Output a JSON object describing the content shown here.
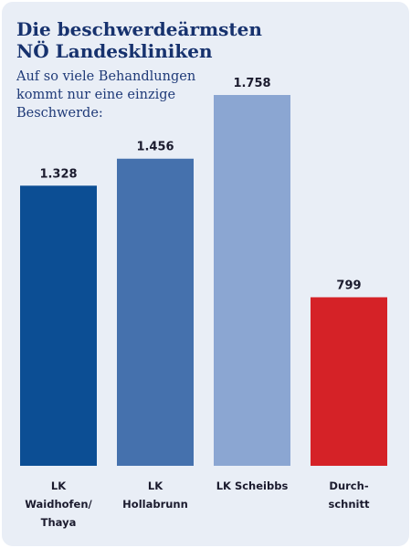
{
  "title_lines": [
    "Die beschwerdeärmsten",
    "NÖ Landeskliniken"
  ],
  "subtitle_lines": [
    "Auf so viele Behandlungen",
    "kommt nur eine einzige",
    "Beschwerde:"
  ],
  "chart_data": {
    "type": "bar",
    "categories": [
      [
        "LK",
        "Waidhofen/",
        "Thaya"
      ],
      [
        "LK",
        "Hollabrunn"
      ],
      [
        "LK Scheibbs"
      ],
      [
        "Durch-",
        "schnitt"
      ]
    ],
    "values": [
      1328,
      1456,
      1758,
      799
    ],
    "value_labels": [
      "1.328",
      "1.456",
      "1.758",
      "799"
    ],
    "colors": [
      "#0c4e94",
      "#4571ad",
      "#8ba6d2",
      "#d52227"
    ],
    "title": "Die beschwerdeärmsten NÖ Landeskliniken",
    "subtitle": "Auf so viele Behandlungen kommt nur eine einzige Beschwerde:",
    "xlabel": "",
    "ylabel": "",
    "ylim": [
      0,
      1758
    ],
    "grid": false,
    "legend": "none"
  }
}
